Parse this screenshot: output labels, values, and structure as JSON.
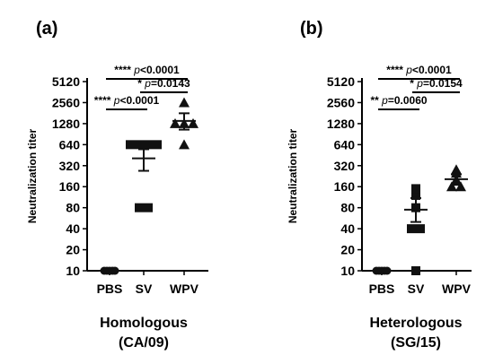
{
  "chart_data": [
    {
      "type": "scatter",
      "panel_label": "(a)",
      "title": "Homologous",
      "subtitle": "(CA/09)",
      "ylabel": "Neutralization titer",
      "y_scale": "log2",
      "ylim": [
        10,
        5120
      ],
      "y_ticks": [
        "10",
        "20",
        "40",
        "80",
        "160",
        "320",
        "640",
        "1280",
        "2560",
        "5120"
      ],
      "categories": [
        "PBS",
        "SV",
        "WPV"
      ],
      "groups": [
        {
          "name": "PBS",
          "marker": "circle",
          "points": [
            10,
            10,
            10,
            10,
            10
          ],
          "mean": 10,
          "sem_low": 10,
          "sem_high": 10
        },
        {
          "name": "SV",
          "marker": "square",
          "points": [
            80,
            80,
            640,
            640,
            640,
            640
          ],
          "mean": 407,
          "sem_low": 270,
          "sem_high": 550
        },
        {
          "name": "WPV",
          "marker": "triangle",
          "points": [
            640,
            1280,
            1280,
            1280,
            2560
          ],
          "mean": 1400,
          "sem_low": 1050,
          "sem_high": 1800
        }
      ],
      "comparisons": [
        {
          "from": "PBS",
          "to": "WPV",
          "stars": "****",
          "p_label": "p",
          "p_value": "<0.0001",
          "y": 5600
        },
        {
          "from": "SV",
          "to": "WPV",
          "stars": "*",
          "p_label": "p",
          "p_value": "=0.0143",
          "y": 3600
        },
        {
          "from": "PBS",
          "to": "SV",
          "stars": "****",
          "p_label": "p",
          "p_value": "<0.0001",
          "y": 2050
        }
      ]
    },
    {
      "type": "scatter",
      "panel_label": "(b)",
      "title": "Heterologous",
      "subtitle": "(SG/15)",
      "ylabel": "Neutralization titer",
      "y_scale": "log2",
      "ylim": [
        10,
        5120
      ],
      "y_ticks": [
        "10",
        "20",
        "40",
        "80",
        "160",
        "320",
        "640",
        "1280",
        "2560",
        "5120"
      ],
      "categories": [
        "PBS",
        "SV",
        "WPV"
      ],
      "groups": [
        {
          "name": "PBS",
          "marker": "circle",
          "points": [
            10,
            10,
            10,
            10,
            10
          ],
          "mean": 10,
          "sem_low": 10,
          "sem_high": 10
        },
        {
          "name": "SV",
          "marker": "square",
          "points": [
            10,
            40,
            40,
            80,
            120,
            150
          ],
          "mean": 75,
          "sem_low": 50,
          "sem_high": 110
        },
        {
          "name": "WPV",
          "marker": "triangle",
          "points": [
            160,
            160,
            200,
            250,
            280
          ],
          "mean": 205,
          "sem_low": 170,
          "sem_high": 240
        }
      ],
      "comparisons": [
        {
          "from": "PBS",
          "to": "WPV",
          "stars": "****",
          "p_label": "p",
          "p_value": "<0.0001",
          "y": 5600
        },
        {
          "from": "SV",
          "to": "WPV",
          "stars": "*",
          "p_label": "p",
          "p_value": "=0.0154",
          "y": 3600
        },
        {
          "from": "PBS",
          "to": "SV",
          "stars": "**",
          "p_label": "p",
          "p_value": "=0.0060",
          "y": 2050
        }
      ]
    }
  ]
}
